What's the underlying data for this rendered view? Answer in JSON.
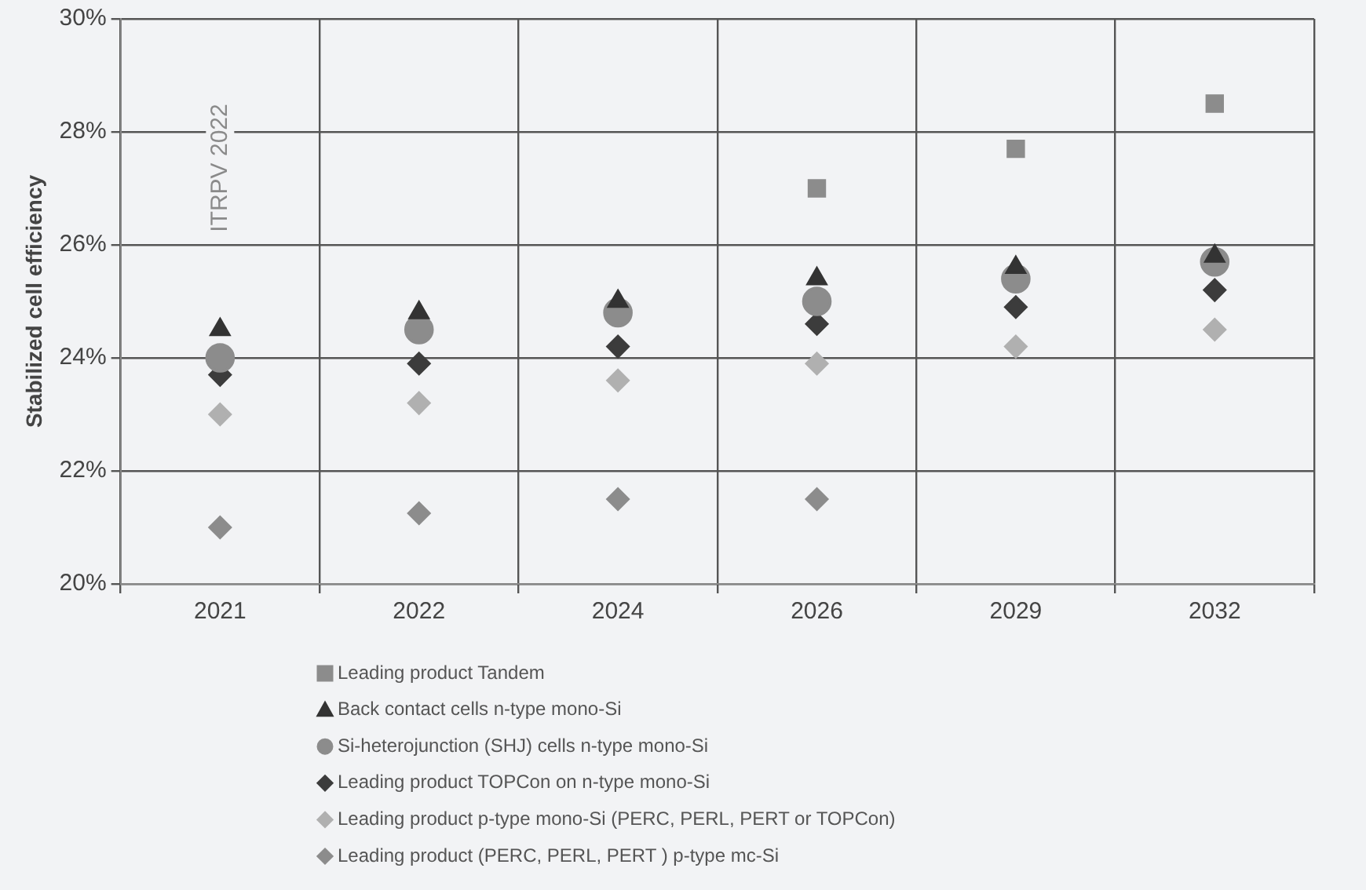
{
  "chart_data": {
    "type": "scatter",
    "ylabel": "Stabilized cell efficiency",
    "categories": [
      "2021",
      "2022",
      "2024",
      "2026",
      "2029",
      "2032"
    ],
    "ylim": [
      20,
      30
    ],
    "yticks": [
      {
        "value": 20,
        "label": "20%"
      },
      {
        "value": 22,
        "label": "22%"
      },
      {
        "value": 24,
        "label": "24%"
      },
      {
        "value": 26,
        "label": "26%"
      },
      {
        "value": 28,
        "label": "28%"
      },
      {
        "value": 30,
        "label": "30%"
      }
    ],
    "grid": true,
    "legend": "bottom",
    "annotations": [
      "ITRPV 2022"
    ],
    "series": [
      {
        "name": "Leading product Tandem",
        "color": "#8c8c8c",
        "marker": "square",
        "values": [
          null,
          null,
          null,
          27.0,
          27.7,
          28.5
        ]
      },
      {
        "name": "Back contact cells n-type mono-Si",
        "color": "#333333",
        "marker": "triangle",
        "values": [
          24.5,
          24.8,
          25.0,
          25.4,
          25.6,
          25.8
        ]
      },
      {
        "name": "Si-heterojunction (SHJ) cells n-type mono-Si",
        "color": "#8c8c8c",
        "marker": "circle",
        "values": [
          24.0,
          24.5,
          24.8,
          25.0,
          25.4,
          25.7
        ]
      },
      {
        "name": "Leading product TOPCon on n-type mono-Si",
        "color": "#3c3c3c",
        "marker": "diamond",
        "values": [
          23.7,
          23.9,
          24.2,
          24.6,
          24.9,
          25.2
        ]
      },
      {
        "name": "Leading product p-type mono-Si (PERC, PERL, PERT or TOPCon)",
        "color": "#b0b0b0",
        "marker": "diamond",
        "values": [
          23.0,
          23.2,
          23.6,
          23.9,
          24.2,
          24.5
        ]
      },
      {
        "name": "Leading product (PERC, PERL, PERT ) p-type mc-Si",
        "color": "#8c8c8c",
        "marker": "diamond",
        "values": [
          21.0,
          21.25,
          21.5,
          21.5,
          null,
          null
        ]
      }
    ]
  }
}
